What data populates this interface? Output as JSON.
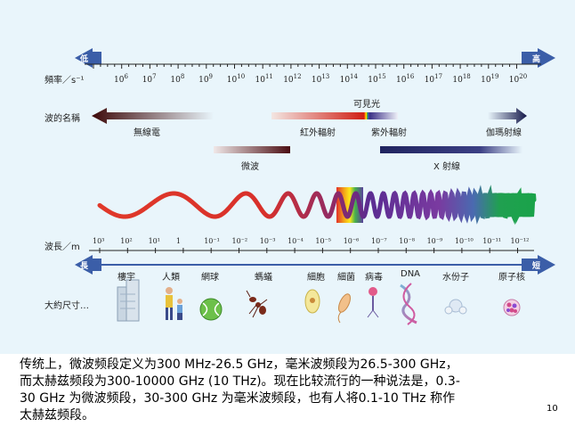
{
  "diagram": {
    "freq_arrow_left": "低",
    "freq_arrow_right": "高",
    "freq_axis_label": "頻率／s⁻¹",
    "freq_exponents": [
      "6",
      "7",
      "8",
      "9",
      "10",
      "11",
      "12",
      "13",
      "14",
      "15",
      "16",
      "17",
      "18",
      "19",
      "20"
    ],
    "freq_base": "10",
    "wave_name_label": "波的名稱",
    "visible_light_label": "可見光",
    "bands": {
      "radio": "無線電",
      "infrared": "紅外輻射",
      "ultraviolet": "紫外輻射",
      "gamma": "伽瑪射線",
      "microwave": "微波",
      "xray": "X 射線"
    },
    "wavelength_axis_label": "波長／m",
    "wavelength_ticks": [
      "10³",
      "10²",
      "10¹",
      "1",
      "10⁻¹",
      "10⁻²",
      "10⁻³",
      "10⁻⁴",
      "10⁻⁵",
      "10⁻⁶",
      "10⁻⁷",
      "10⁻⁸",
      "10⁻⁹",
      "10⁻¹⁰",
      "10⁻¹¹",
      "10⁻¹²"
    ],
    "size_arrow_left": "長",
    "size_arrow_right": "短",
    "size_label": "大約尺寸…",
    "objects": [
      "樓宇",
      "人類",
      "網球",
      "螞蟻",
      "細胞",
      "細菌",
      "病毒",
      "DNA",
      "水份子",
      "原子核"
    ]
  },
  "caption": {
    "line1": "传统上，微波频段定义为300 MHz-26.5 GHz，毫米波频段为26.5-300 GHz，",
    "line2": "而太赫兹频段为300-10000 GHz (10 THz)。现在比较流行的一种说法是，0.3-",
    "line3": "30 GHz 为微波频段，30-300 GHz 为毫米波频段，也有人将0.1-10 THz 称作",
    "line4": "太赫兹频段。"
  },
  "page_number": "10",
  "colors": {
    "panel_bg": "#e9f5fb",
    "arrow_blue": "#3b5ea8",
    "radio_dark": "#4a0d0d",
    "infrared_red": "#d9261c",
    "ultraviolet_purple": "#4b3c8c",
    "xray_navy": "#1e2361",
    "wave_red": "#e0392a",
    "wave_green": "#1aa34a"
  }
}
